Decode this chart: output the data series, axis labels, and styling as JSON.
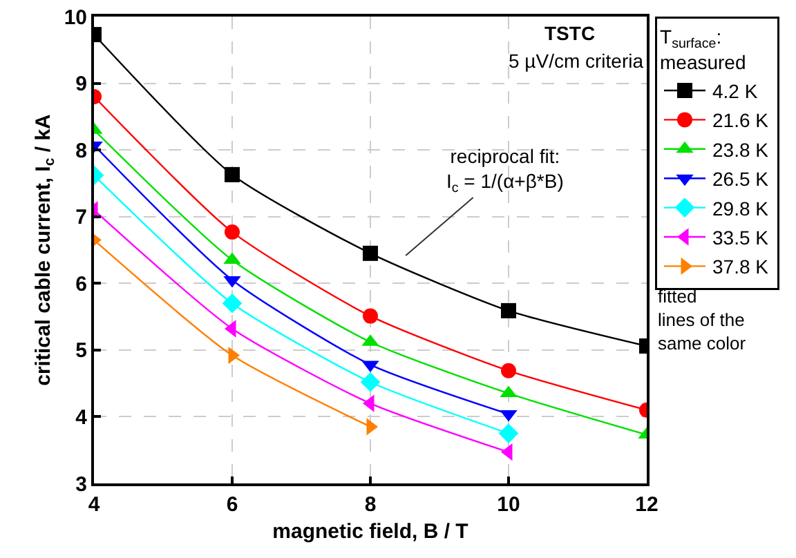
{
  "chart_data": {
    "type": "line",
    "xlabel": "magnetic field, B / T",
    "ylabel": "critical cable current, I$_{c}$ / kA",
    "legend_title": "T$_{surface}$:\nmeasured",
    "x": [
      4,
      6,
      8,
      10,
      12
    ],
    "xlim": [
      4,
      12
    ],
    "xticks": [
      4,
      6,
      8,
      10,
      12
    ],
    "ylim": [
      3,
      10
    ],
    "yticks": [
      3,
      4,
      5,
      6,
      7,
      8,
      9,
      10
    ],
    "grid": true,
    "legend": "right",
    "line_style": "solid",
    "series": [
      {
        "name": "4.2 K",
        "color": "#000000",
        "marker": "square",
        "values": [
          9.73,
          7.63,
          6.45,
          5.59,
          5.06
        ]
      },
      {
        "name": "21.6 K",
        "color": "#ff0000",
        "marker": "circle",
        "values": [
          8.8,
          6.77,
          5.51,
          4.69,
          4.1
        ]
      },
      {
        "name": "23.8 K",
        "color": "#00e000",
        "marker": "triangle",
        "values": [
          8.3,
          6.35,
          5.12,
          4.35,
          3.73
        ]
      },
      {
        "name": "26.5 K",
        "color": "#0000ff",
        "marker": "triangle-down",
        "values": [
          8.07,
          6.05,
          4.78,
          4.04,
          null
        ]
      },
      {
        "name": "29.8 K",
        "color": "#00ffff",
        "marker": "diamond",
        "values": [
          7.62,
          5.7,
          4.52,
          3.75,
          null
        ]
      },
      {
        "name": "33.5 K",
        "color": "#ff00ff",
        "marker": "triangle-left",
        "values": [
          7.1,
          5.32,
          4.2,
          3.47,
          null
        ]
      },
      {
        "name": "37.8 K",
        "color": "#ff8000",
        "marker": "triangle-right",
        "values": [
          6.65,
          4.92,
          3.85,
          null,
          null
        ]
      }
    ],
    "annotations": [
      "TSTC",
      "5 µV/cm criteria",
      "reciprocal fit:\nI$_{c}$ = 1/(α+β*B)",
      "fitted\nlines of the\nsame color"
    ]
  }
}
